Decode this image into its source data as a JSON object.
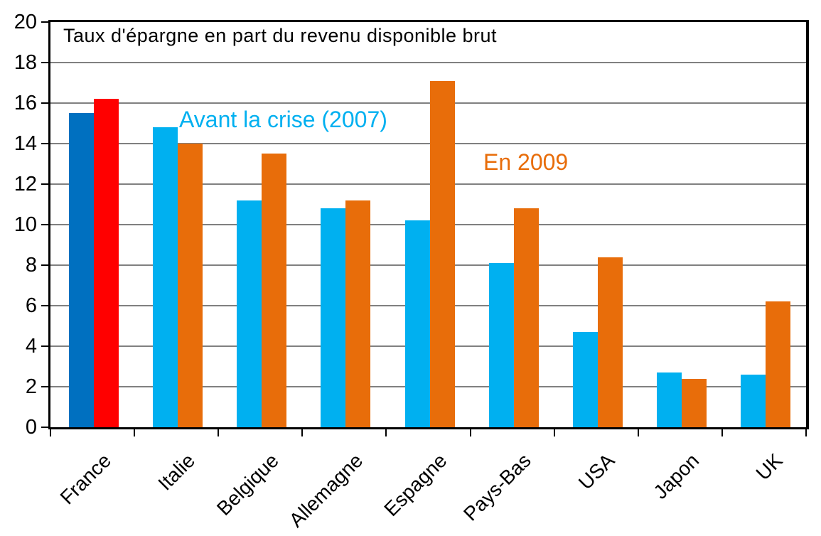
{
  "chart_data": {
    "type": "bar",
    "title": "Taux d'épargne en part du revenu disponible brut",
    "categories": [
      "France",
      "Italie",
      "Belgique",
      "Allemagne",
      "Espagne",
      "Pays-Bas",
      "USA",
      "Japon",
      "UK"
    ],
    "series": [
      {
        "name": "Avant la crise (2007)",
        "color": "#00B0F0",
        "values": [
          15.5,
          14.8,
          11.2,
          10.8,
          10.2,
          8.1,
          4.7,
          2.7,
          2.6
        ]
      },
      {
        "name": "En 2009",
        "color": "#E86D0A",
        "values": [
          16.2,
          14.0,
          13.5,
          11.2,
          17.1,
          10.8,
          8.4,
          2.4,
          6.2
        ]
      }
    ],
    "highlight": {
      "category": "France",
      "series_colors": [
        "#0070C0",
        "#FF0000"
      ]
    },
    "ylim": [
      0,
      20
    ],
    "ytick_step": 2,
    "ytick_labels": [
      "0",
      "2",
      "4",
      "6",
      "8",
      "10",
      "12",
      "14",
      "16",
      "18",
      "20"
    ],
    "xlabel": "",
    "ylabel": "",
    "grid": "horizontal",
    "gridline_color": "#808080",
    "axis_color": "#000000",
    "legend_position": "inside-plot-annotations"
  }
}
